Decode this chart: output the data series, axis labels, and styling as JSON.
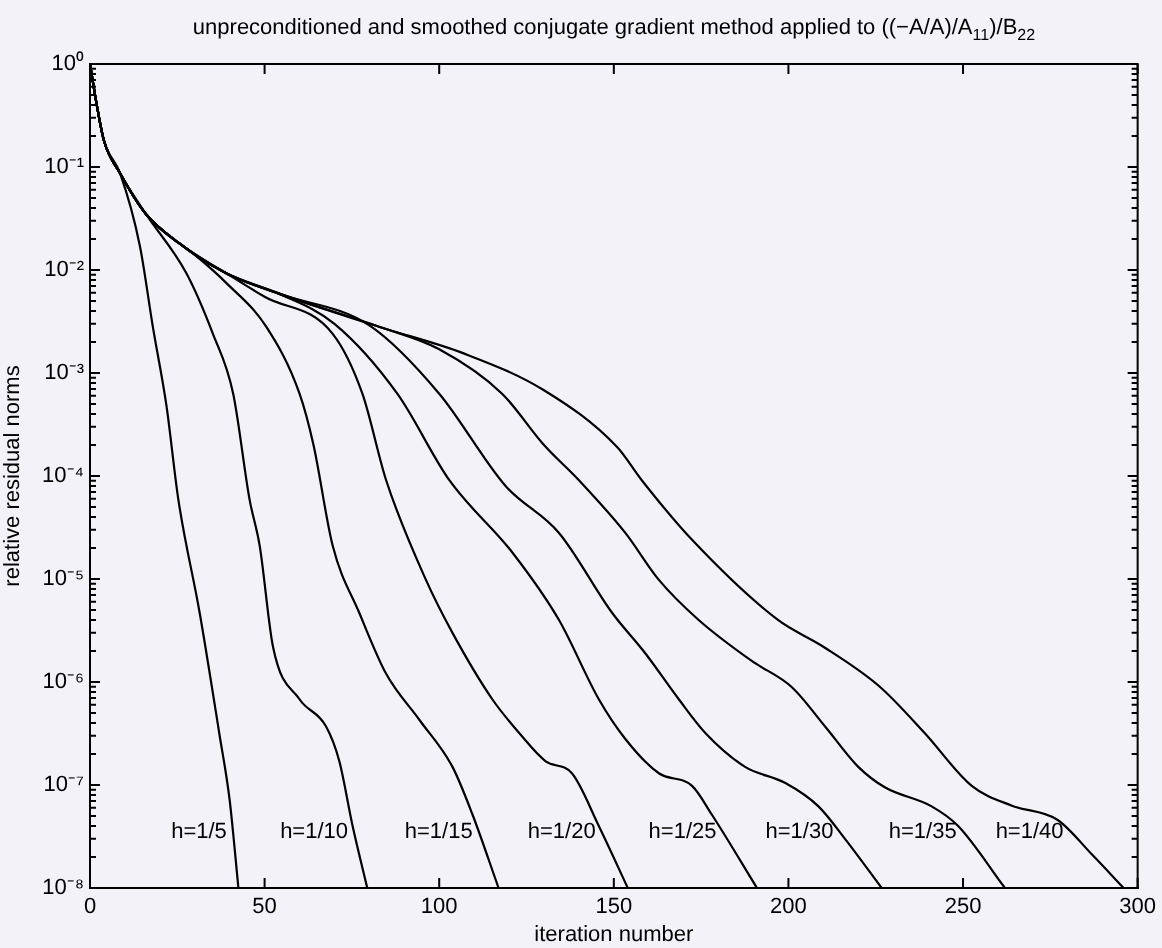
{
  "chart_data": {
    "type": "line",
    "title": "unpreconditioned and smoothed conjugate gradient method applied to ((−A/A)/A$_{11}$)/B$_{22}$",
    "xlabel": "iteration number",
    "ylabel": "relative residual norms",
    "log": "y",
    "grid": false,
    "legend": false,
    "marker": "none",
    "line_style": "solid",
    "xlim": [
      0,
      300
    ],
    "xticks": [
      0,
      50,
      100,
      150,
      200,
      250,
      300
    ],
    "ylim": [
      1e-08,
      1
    ],
    "yticks": [
      {
        "value": 1e-08,
        "label": "10⁻⁸"
      },
      {
        "value": 1e-07,
        "label": "10⁻⁷"
      },
      {
        "value": 1e-06,
        "label": "10⁻⁶"
      },
      {
        "value": 1e-05,
        "label": "10⁻⁵"
      },
      {
        "value": 0.0001,
        "label": "10⁻⁴"
      },
      {
        "value": 0.001,
        "label": "10⁻³"
      },
      {
        "value": 0.01,
        "label": "10⁻²"
      },
      {
        "value": 0.1,
        "label": "10⁻¹"
      },
      {
        "value": 1,
        "label": "10⁰"
      }
    ],
    "series": [
      {
        "name": "h=1/5",
        "color": "#000000",
        "x": [
          0,
          2,
          4,
          8.6,
          14.3,
          18,
          21.9,
          25.3,
          31.4,
          37,
          40,
          42.5
        ],
        "values": [
          1,
          0.39,
          0.18,
          0.087,
          0.017,
          0.0028,
          0.00048,
          5.9e-05,
          4.7e-06,
          3.2e-07,
          7.1e-08,
          1e-08
        ]
      },
      {
        "name": "h=1/10",
        "color": "#000000",
        "x": [
          0,
          2,
          4,
          8.6,
          16,
          27.6,
          35.2,
          41,
          45.7,
          48.6,
          52.4,
          60,
          67.6,
          71.4,
          75.2,
          79.4
        ],
        "values": [
          1,
          0.39,
          0.18,
          0.087,
          0.035,
          0.0093,
          0.0024,
          0.00063,
          5.9e-05,
          2.1e-05,
          2.2e-06,
          6.8e-07,
          3.7e-07,
          1.7e-07,
          4e-08,
          1e-08
        ]
      },
      {
        "name": "h=1/15",
        "color": "#000000",
        "x": [
          0,
          2,
          4,
          8.6,
          16,
          25.7,
          30,
          39,
          50.5,
          60,
          64,
          69.5,
          77.1,
          84.8,
          94.3,
          103.8,
          109.5,
          117
        ],
        "values": [
          1,
          0.39,
          0.18,
          0.087,
          0.035,
          0.018,
          0.014,
          0.0075,
          0.0028,
          0.00063,
          0.0002,
          2.1e-05,
          4.7e-06,
          1.2e-06,
          4.3e-07,
          1.5e-07,
          5.2e-08,
          1e-08
        ]
      },
      {
        "name": "h=1/20",
        "color": "#000000",
        "x": [
          0,
          2,
          4,
          8.6,
          16,
          25.7,
          39,
          50,
          69.5,
          78,
          84.8,
          96.2,
          103.8,
          115.2,
          122.9,
          130.5,
          138,
          145.7,
          154
        ],
        "values": [
          1,
          0.39,
          0.18,
          0.087,
          0.035,
          0.018,
          0.0093,
          0.0055,
          0.0024,
          0.00063,
          9.1e-05,
          9.8e-06,
          3e-06,
          6.8e-07,
          3.2e-07,
          1.7e-07,
          1.3e-07,
          4e-08,
          1e-08
        ]
      },
      {
        "name": "h=1/25",
        "color": "#000000",
        "x": [
          0,
          2,
          4,
          8.6,
          16,
          25.7,
          39,
          54,
          70,
          88,
          102.9,
          121,
          134.3,
          145.7,
          153.3,
          162.9,
          172.4,
          178,
          191
        ],
        "values": [
          1,
          0.39,
          0.18,
          0.087,
          0.035,
          0.018,
          0.0093,
          0.0059,
          0.003,
          0.00063,
          9.1e-05,
          1.8e-05,
          4e-06,
          6.8e-07,
          2.8e-07,
          1.3e-07,
          9.8e-08,
          5.2e-08,
          1e-08
        ]
      },
      {
        "name": "h=1/30",
        "color": "#000000",
        "x": [
          0,
          2,
          4,
          8.6,
          16,
          25.7,
          39,
          54,
          80,
          100,
          119,
          134.3,
          149.5,
          159,
          168.6,
          176.2,
          187.6,
          199,
          208.6,
          216.2,
          226.7
        ],
        "values": [
          1,
          0.39,
          0.18,
          0.087,
          0.035,
          0.018,
          0.0093,
          0.0059,
          0.0029,
          0.00063,
          8e-05,
          2.8e-05,
          4.7e-06,
          1.9e-06,
          6.8e-07,
          3.2e-07,
          1.5e-07,
          1.05e-07,
          6.2e-08,
          3e-08,
          1e-08
        ]
      },
      {
        "name": "h=1/35",
        "color": "#000000",
        "x": [
          0,
          2,
          4,
          8.6,
          16,
          25.7,
          39,
          54,
          83,
          100,
          118,
          130,
          140,
          153.3,
          162.9,
          174.3,
          189.5,
          201,
          210.5,
          220,
          227.6,
          241,
          248.6,
          262
        ],
        "values": [
          1,
          0.39,
          0.18,
          0.087,
          0.035,
          0.018,
          0.0093,
          0.0059,
          0.0028,
          0.0017,
          0.00063,
          0.0002,
          9.1e-05,
          2.8e-05,
          9.8e-06,
          4e-06,
          1.6e-06,
          8.9e-07,
          3.7e-07,
          1.5e-07,
          9.5e-08,
          6.2e-08,
          4e-08,
          1e-08
        ]
      },
      {
        "name": "h=1/40",
        "color": "#000000",
        "x": [
          0,
          2,
          4,
          8.6,
          16,
          25.7,
          39,
          54.3,
          82.9,
          107,
          130,
          151,
          158,
          172.4,
          197,
          210,
          226,
          239,
          252.5,
          264,
          277,
          287,
          296
        ],
        "values": [
          1,
          0.39,
          0.18,
          0.087,
          0.035,
          0.018,
          0.0093,
          0.0059,
          0.0028,
          0.00155,
          0.00068,
          0.00019,
          9.1e-05,
          2.4e-05,
          4e-06,
          2.2e-06,
          9.1e-07,
          3.2e-07,
          9.8e-08,
          6.3e-08,
          4.6e-08,
          2.1e-08,
          1e-08
        ]
      }
    ]
  }
}
